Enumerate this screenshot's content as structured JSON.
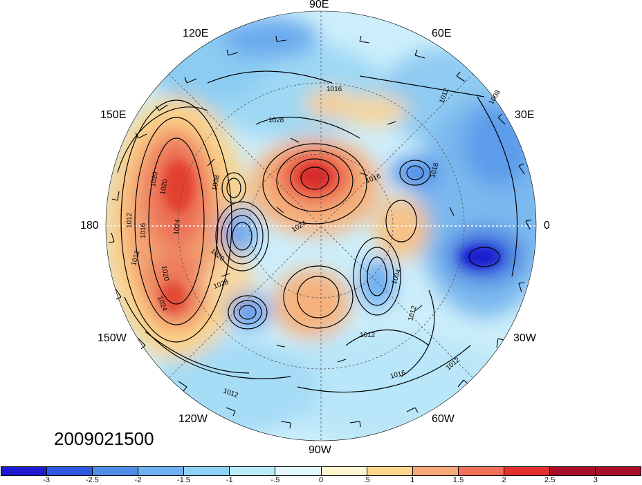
{
  "date_label": "2009021500",
  "longitude_labels": {
    "e90": "90E",
    "e120": "120E",
    "e60": "60E",
    "e150": "150E",
    "e30": "30E",
    "d180": "180",
    "d0": "0",
    "w150": "150W",
    "w30": "30W",
    "w120": "120W",
    "w60": "60W",
    "w90": "90W"
  },
  "contour_labels": [
    "1016",
    "1028",
    "1008",
    "1012",
    "1016",
    "1016",
    "1020",
    "1024",
    "1020",
    "1028",
    "1012",
    "1016",
    "1012",
    "1024",
    "1008",
    "1020",
    "1004",
    "1012",
    "1012",
    "1016",
    "1012",
    "1024",
    "1012",
    "1020"
  ],
  "colorbar": {
    "ticks": [
      "-3",
      "-2.5",
      "-2",
      "-1.5",
      "-1",
      "-.5",
      "0",
      ".5",
      "1",
      "1.5",
      "2",
      "2.5",
      "3"
    ],
    "colors": [
      "#1d1ad0",
      "#2b58e0",
      "#4f8ee8",
      "#6fb0f0",
      "#8dd2f4",
      "#b8ecf8",
      "#e2f8fa",
      "#fdf5d2",
      "#fbd78e",
      "#f6a877",
      "#f07058",
      "#e3302e",
      "#a80c28",
      "#a80c28"
    ]
  }
}
